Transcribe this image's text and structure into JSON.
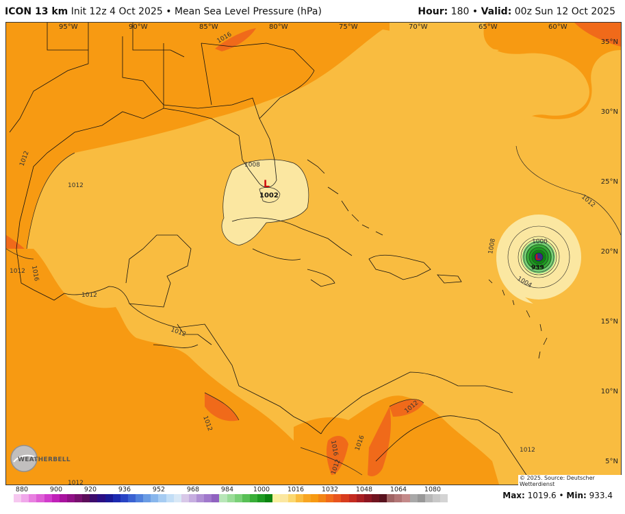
{
  "header": {
    "model": "ICON 13 km",
    "init": "Init 12z 4 Oct 2025",
    "separator": "•",
    "field": "Mean Sea Level Pressure (hPa)",
    "hour_label": "Hour:",
    "hour_value": "180",
    "valid_label": "Valid:",
    "valid_value": "00z Sun 12 Oct 2025"
  },
  "map": {
    "longitude_labels": [
      "95°W",
      "90°W",
      "85°W",
      "80°W",
      "75°W",
      "70°W",
      "65°W",
      "60°W"
    ],
    "latitude_labels": [
      "35°N",
      "30°N",
      "25°N",
      "20°N",
      "15°N",
      "10°N",
      "5°N"
    ],
    "isobar_labels": [
      "1012",
      "1012",
      "1012",
      "1012",
      "1016",
      "1008",
      "1002",
      "1008",
      "1000",
      "1004",
      "1012",
      "1012",
      "1012",
      "1016",
      "1016",
      "1016",
      "1012",
      "1012",
      "1012",
      "1012"
    ],
    "low_marker": "L",
    "low_center_value": "1002",
    "storm_center_value": "939",
    "copyright": "© 2025. Source: Deutscher Wetterdienst",
    "logo_text": "WEATHERBELL",
    "colors": {
      "ocean_base": "#f9bc40",
      "land_high": "#f79a12",
      "ridge": "#f06a1a",
      "low_yellow": "#fbe7a1",
      "storm_green": "#2e8b2e",
      "storm_core": "#3b2c86"
    }
  },
  "colorbar": {
    "ticks": [
      "880",
      "900",
      "920",
      "936",
      "952",
      "968",
      "984",
      "1000",
      "1016",
      "1032",
      "1048",
      "1064",
      "1080"
    ],
    "colors": [
      "#f6c8f0",
      "#f0a8ea",
      "#e880e0",
      "#de5fd6",
      "#d13ccc",
      "#c020b8",
      "#a8129e",
      "#901086",
      "#77106e",
      "#5c0e5a",
      "#3c0c6c",
      "#2a0e84",
      "#1a1896",
      "#1c2ab0",
      "#2844c4",
      "#3a62d2",
      "#4f80dc",
      "#6a9ce4",
      "#88b6ec",
      "#a6ccf2",
      "#c2def6",
      "#d8e8f6",
      "#d8c8e8",
      "#c6aee0",
      "#b090d4",
      "#a078cc",
      "#9062c0",
      "#b8e6b8",
      "#9adc98",
      "#7ad078",
      "#58c056",
      "#38ae38",
      "#1e9a22",
      "#0c8410",
      "#f9f0a0",
      "#fbe7a1",
      "#fbd870",
      "#f9bc40",
      "#f7a522",
      "#f79a12",
      "#f38414",
      "#f06a1a",
      "#e8541e",
      "#d83c1e",
      "#c42a20",
      "#a81e22",
      "#8c1622",
      "#701420",
      "#58121e",
      "#a06464",
      "#b27676",
      "#c48a8a",
      "#a8a8a8",
      "#989898",
      "#b8b8b8",
      "#c8c8c8",
      "#d4d4d4"
    ]
  },
  "stats": {
    "max_label": "Max:",
    "max_value": "1019.6",
    "min_label": "Min:",
    "min_value": "933.4",
    "separator": "•"
  }
}
